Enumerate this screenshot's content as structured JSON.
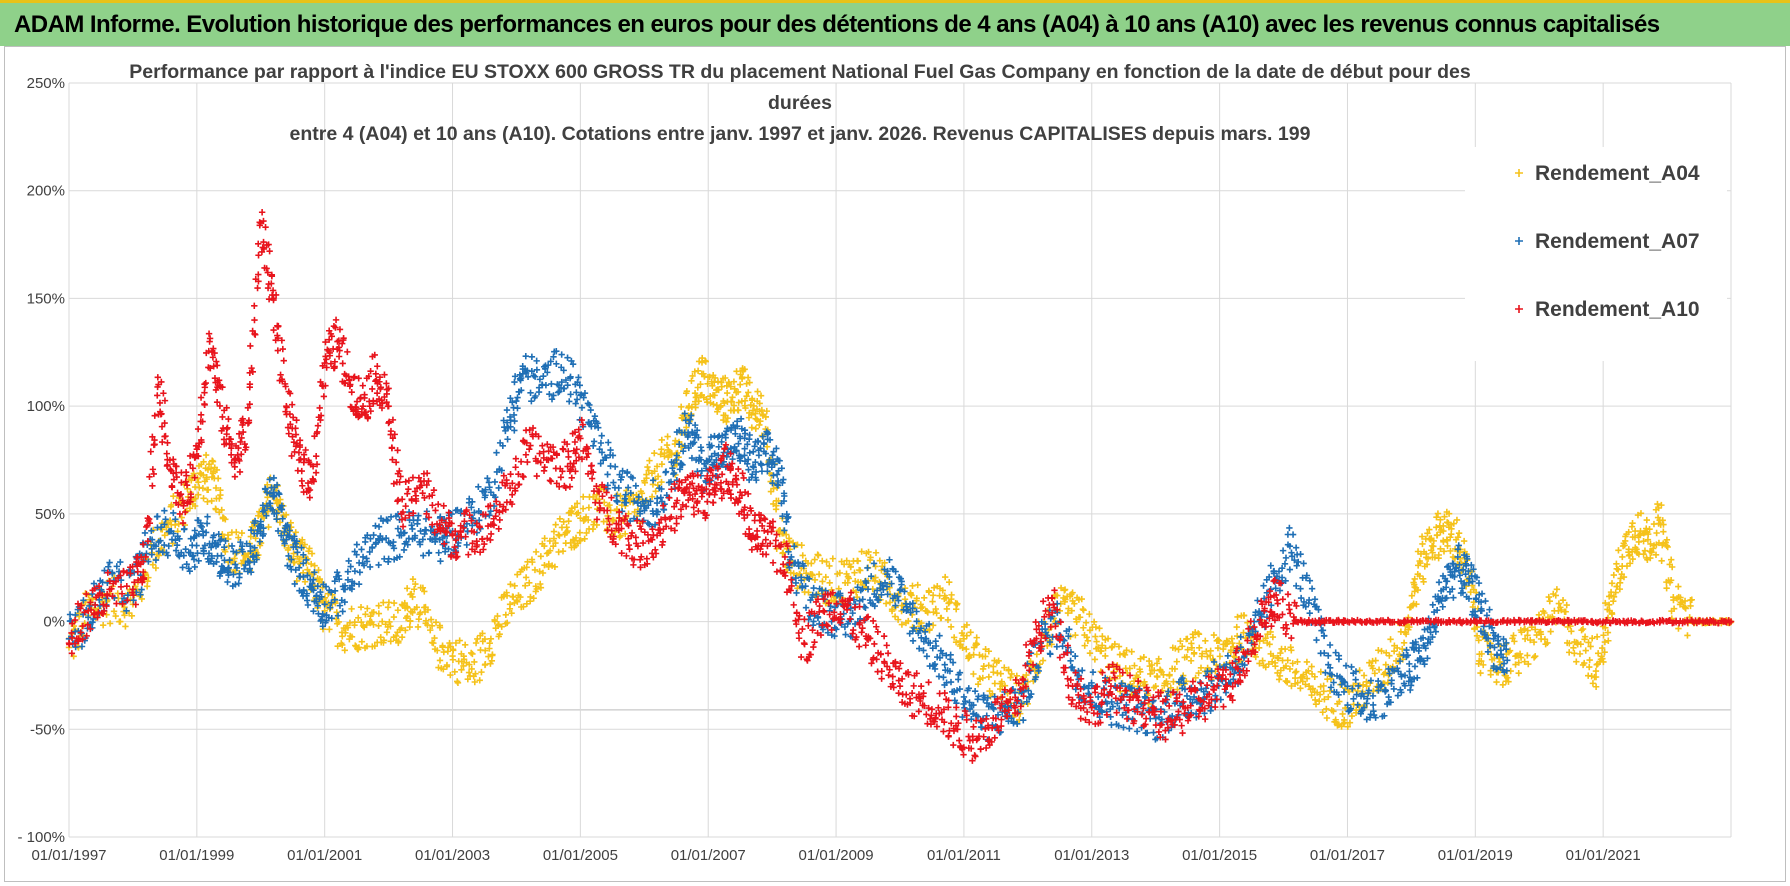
{
  "header": {
    "title": "ADAM Informe. Evolution historique des performances en euros pour des détentions de 4 ans (A04) à 10 ans (A10) avec les revenus connus capitalisés"
  },
  "colors": {
    "banner": "#8fd18a",
    "banner_border": "#e8c219",
    "A04": "#f5c21b",
    "A07": "#1f6fb5",
    "A10": "#e8141c",
    "grid": "#d9d9d9",
    "text": "#404040"
  },
  "chart_data": {
    "type": "scatter",
    "title_lines": [
      "Performance par rapport à l'indice EU STOXX 600 GROSS TR  du placement National Fuel Gas Company en fonction de la date de début pour des",
      "durées",
      "entre 4 (A04) et 10 ans (A10). Cotations entre janv. 1997 et janv. 2026. Revenus CAPITALISES depuis mars. 199"
    ],
    "xlabel": "",
    "ylabel": "",
    "ylim": [
      -100,
      250
    ],
    "xlim": [
      1997.0,
      2023.0
    ],
    "grid": true,
    "legend_position": "top-right",
    "y_ticks": [
      {
        "value": 250,
        "label": "250%"
      },
      {
        "value": 200,
        "label": "200%"
      },
      {
        "value": 150,
        "label": "150%"
      },
      {
        "value": 100,
        "label": "100%"
      },
      {
        "value": 50,
        "label": "50%"
      },
      {
        "value": 0,
        "label": "0%"
      },
      {
        "value": -50,
        "label": "-50%"
      },
      {
        "value": -100,
        "label": "- 100%"
      }
    ],
    "x_ticks": [
      {
        "value": 1997.0,
        "label": "01/01/1997"
      },
      {
        "value": 1999.0,
        "label": "01/01/1999"
      },
      {
        "value": 2001.0,
        "label": "01/01/2001"
      },
      {
        "value": 2003.0,
        "label": "01/01/2003"
      },
      {
        "value": 2005.0,
        "label": "01/01/2005"
      },
      {
        "value": 2007.0,
        "label": "01/01/2007"
      },
      {
        "value": 2009.0,
        "label": "01/01/2009"
      },
      {
        "value": 2011.0,
        "label": "01/01/2011"
      },
      {
        "value": 2013.0,
        "label": "01/01/2013"
      },
      {
        "value": 2015.0,
        "label": "01/01/2015"
      },
      {
        "value": 2017.0,
        "label": "01/01/2017"
      },
      {
        "value": 2019.0,
        "label": "01/01/2019"
      },
      {
        "value": 2021.0,
        "label": "01/01/2021"
      }
    ],
    "series": [
      {
        "name": "Rendement_A04",
        "color": "#f5c21b",
        "x": [
          1997.0,
          1997.3,
          1997.6,
          1998.0,
          1998.3,
          1998.6,
          1998.9,
          1999.1,
          1999.3,
          1999.5,
          1999.8,
          2000.0,
          2000.2,
          2000.4,
          2000.6,
          2000.8,
          2001.0,
          2001.3,
          2001.6,
          2001.9,
          2002.2,
          2002.4,
          2002.7,
          2003.0,
          2003.3,
          2003.6,
          2003.9,
          2004.2,
          2004.5,
          2004.8,
          2005.0,
          2005.3,
          2005.6,
          2005.9,
          2006.2,
          2006.5,
          2006.7,
          2006.9,
          2007.1,
          2007.3,
          2007.5,
          2007.7,
          2007.9,
          2008.1,
          2008.3,
          2008.6,
          2008.9,
          2009.2,
          2009.5,
          2009.8,
          2010.1,
          2010.4,
          2010.7,
          2011.0,
          2011.3,
          2011.6,
          2011.9,
          2012.2,
          2012.5,
          2012.8,
          2013.1,
          2013.4,
          2013.7,
          2014.0,
          2014.3,
          2014.6,
          2014.9,
          2015.2,
          2015.5,
          2015.8,
          2016.1,
          2016.4,
          2016.7,
          2017.0,
          2017.3,
          2017.6,
          2017.9,
          2018.1,
          2018.3,
          2018.5,
          2018.7,
          2018.9,
          2019.1,
          2019.4,
          2019.7,
          2020.0,
          2020.3,
          2020.6,
          2020.9,
          2021.1,
          2021.3,
          2021.5,
          2021.7,
          2021.9,
          2022.1,
          2022.4,
          2022.7,
          2023.0
        ],
        "values": [
          -12,
          5,
          10,
          8,
          32,
          45,
          60,
          68,
          62,
          35,
          30,
          42,
          62,
          40,
          28,
          22,
          5,
          -3,
          -2,
          0,
          -3,
          15,
          -10,
          -16,
          -22,
          -8,
          8,
          18,
          32,
          42,
          48,
          52,
          48,
          52,
          72,
          78,
          100,
          115,
          105,
          102,
          110,
          98,
          95,
          42,
          28,
          22,
          18,
          20,
          25,
          15,
          8,
          5,
          12,
          -8,
          -22,
          -30,
          -38,
          -10,
          5,
          2,
          -12,
          -22,
          -25,
          -30,
          -22,
          -15,
          -18,
          -10,
          -5,
          -15,
          -22,
          -30,
          -35,
          -40,
          -30,
          -20,
          -5,
          22,
          38,
          42,
          38,
          20,
          -15,
          -20,
          -15,
          -5,
          5,
          -10,
          -20,
          5,
          30,
          42,
          38,
          45,
          10,
          0,
          0,
          0
        ]
      },
      {
        "name": "Rendement_A07",
        "color": "#1f6fb5",
        "x": [
          1997.0,
          1997.3,
          1997.6,
          1998.0,
          1998.3,
          1998.6,
          1998.9,
          1999.1,
          1999.3,
          1999.5,
          1999.8,
          2000.0,
          2000.2,
          2000.4,
          2000.6,
          2000.8,
          2001.0,
          2001.3,
          2001.6,
          2001.9,
          2002.2,
          2002.5,
          2002.8,
          2003.0,
          2003.3,
          2003.6,
          2003.9,
          2004.1,
          2004.4,
          2004.7,
          2005.0,
          2005.3,
          2005.6,
          2005.9,
          2006.2,
          2006.5,
          2006.7,
          2006.9,
          2007.1,
          2007.3,
          2007.5,
          2007.7,
          2007.9,
          2008.1,
          2008.3,
          2008.6,
          2008.9,
          2009.2,
          2009.5,
          2009.8,
          2010.1,
          2010.4,
          2010.7,
          2011.0,
          2011.3,
          2011.6,
          2011.9,
          2012.2,
          2012.5,
          2012.8,
          2013.1,
          2013.4,
          2013.7,
          2014.0,
          2014.3,
          2014.6,
          2014.9,
          2015.2,
          2015.5,
          2015.8,
          2016.1,
          2016.4,
          2016.7,
          2017.0,
          2017.3,
          2017.6,
          2017.9,
          2018.1,
          2018.3,
          2018.5,
          2018.7,
          2018.9,
          2019.1,
          2019.3,
          2019.5
        ],
        "values": [
          -8,
          2,
          18,
          15,
          38,
          42,
          32,
          40,
          35,
          25,
          28,
          45,
          60,
          38,
          25,
          15,
          8,
          15,
          30,
          38,
          40,
          42,
          38,
          42,
          48,
          60,
          95,
          115,
          110,
          118,
          105,
          80,
          62,
          55,
          55,
          75,
          92,
          70,
          78,
          80,
          85,
          72,
          78,
          70,
          30,
          10,
          5,
          0,
          15,
          22,
          5,
          -8,
          -20,
          -35,
          -45,
          -42,
          -38,
          -10,
          0,
          -25,
          -35,
          -38,
          -40,
          -45,
          -38,
          -35,
          -30,
          -22,
          -10,
          15,
          35,
          10,
          -20,
          -30,
          -38,
          -32,
          -25,
          -18,
          -5,
          15,
          25,
          18,
          5,
          -12,
          -18
        ]
      },
      {
        "name": "Rendement_A10",
        "color": "#e8141c",
        "x": [
          1997.0,
          1997.3,
          1997.6,
          1998.0,
          1998.2,
          1998.4,
          1998.6,
          1998.8,
          1999.0,
          1999.2,
          1999.4,
          1999.6,
          1999.8,
          2000.0,
          2000.2,
          2000.4,
          2000.6,
          2000.8,
          2001.0,
          2001.2,
          2001.4,
          2001.6,
          2001.8,
          2002.0,
          2002.2,
          2002.5,
          2002.8,
          2003.0,
          2003.3,
          2003.6,
          2003.9,
          2004.2,
          2004.5,
          2004.8,
          2005.0,
          2005.3,
          2005.6,
          2005.9,
          2006.2,
          2006.5,
          2006.7,
          2006.9,
          2007.1,
          2007.3,
          2007.5,
          2007.7,
          2007.9,
          2008.2,
          2008.5,
          2008.8,
          2009.1,
          2009.4,
          2009.7,
          2010.0,
          2010.3,
          2010.6,
          2010.9,
          2011.2,
          2011.5,
          2011.8,
          2012.1,
          2012.4,
          2012.7,
          2013.0,
          2013.3,
          2013.6,
          2013.9,
          2014.2,
          2014.5,
          2014.8,
          2015.1,
          2015.4,
          2015.7,
          2015.9,
          2016.2,
          2016.6,
          2017.0,
          2017.5,
          2018.0,
          2018.5,
          2019.0,
          2019.5,
          2020.0,
          2020.5,
          2021.0,
          2021.5,
          2022.0,
          2022.5,
          2023.0
        ],
        "values": [
          -10,
          5,
          12,
          15,
          30,
          110,
          70,
          55,
          80,
          130,
          95,
          75,
          92,
          185,
          150,
          100,
          75,
          65,
          120,
          130,
          110,
          100,
          115,
          100,
          50,
          65,
          45,
          40,
          42,
          45,
          62,
          80,
          75,
          72,
          85,
          55,
          45,
          35,
          40,
          55,
          60,
          58,
          62,
          72,
          60,
          40,
          38,
          30,
          -10,
          5,
          10,
          -5,
          -15,
          -30,
          -35,
          -40,
          -50,
          -55,
          -45,
          -40,
          -10,
          8,
          -30,
          -40,
          -30,
          -35,
          -42,
          -45,
          -40,
          -35,
          -30,
          -15,
          5,
          10,
          0,
          0,
          0,
          0,
          0,
          0,
          0,
          0,
          0,
          0,
          0,
          0,
          0,
          0,
          0
        ]
      }
    ]
  }
}
